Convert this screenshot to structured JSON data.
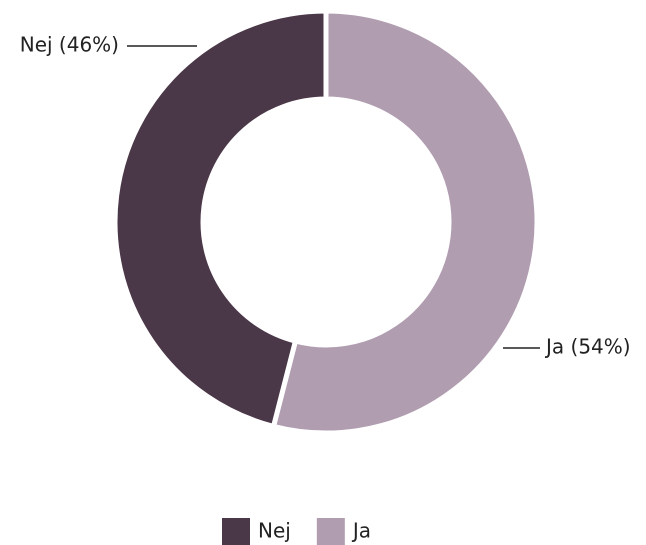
{
  "chart_data": {
    "type": "donut",
    "categories": [
      "Ja",
      "Nej"
    ],
    "values": [
      54,
      46
    ],
    "value_labels": [
      "Ja (54%)",
      "Nej (46%)"
    ],
    "colors": [
      "#b09db0",
      "#4a3748"
    ],
    "legend": "bottom"
  }
}
